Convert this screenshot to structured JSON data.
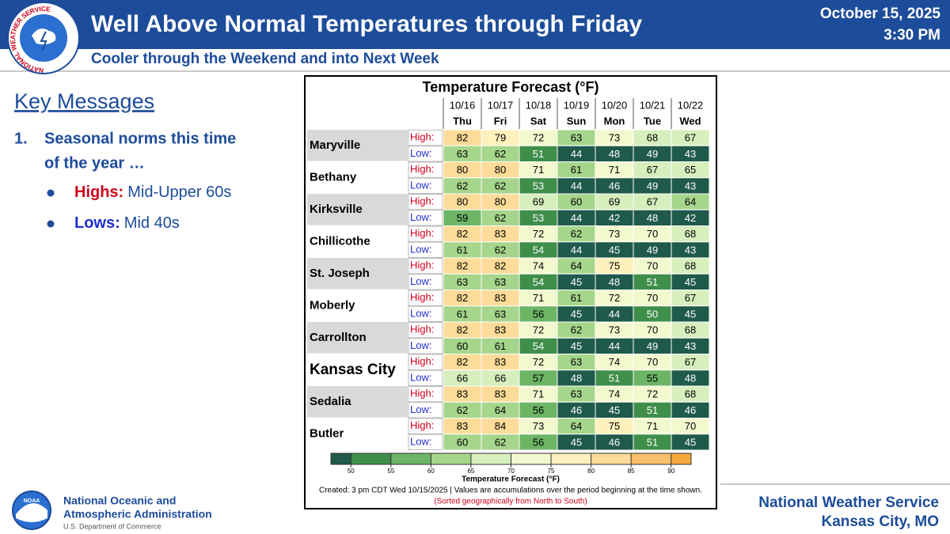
{
  "header": {
    "title": "Well Above Normal Temperatures through Friday",
    "date": "October 15, 2025",
    "time": "3:30 PM",
    "subtitle": "Cooler through the Weekend and into Next Week",
    "logo_text": "NATIONAL WEATHER SERVICE"
  },
  "key_messages": {
    "heading": "Key Messages",
    "item_number": "1.",
    "item_lines": [
      "Seasonal norms this time",
      "of the year …"
    ],
    "bullets": [
      {
        "label": "Highs:",
        "text": "Mid-Upper 60s",
        "color": "#d0021b"
      },
      {
        "label": "Lows:",
        "text": "Mid 40s",
        "color": "#1f2fd0"
      }
    ]
  },
  "table": {
    "title": "Temperature Forecast (°F)",
    "high_label": "High:",
    "low_label": "Low:",
    "days": [
      {
        "date": "10/16",
        "day": "Thu"
      },
      {
        "date": "10/17",
        "day": "Fri"
      },
      {
        "date": "10/18",
        "day": "Sat"
      },
      {
        "date": "10/19",
        "day": "Sun"
      },
      {
        "date": "10/20",
        "day": "Mon"
      },
      {
        "date": "10/21",
        "day": "Tue"
      },
      {
        "date": "10/22",
        "day": "Wed"
      }
    ],
    "rows": [
      {
        "city": "Maryville",
        "highs": [
          82,
          79,
          72,
          63,
          73,
          68,
          67
        ],
        "lows": [
          63,
          62,
          51,
          44,
          48,
          49,
          43
        ]
      },
      {
        "city": "Bethany",
        "highs": [
          80,
          80,
          71,
          61,
          71,
          67,
          65
        ],
        "lows": [
          62,
          62,
          53,
          44,
          46,
          49,
          43
        ]
      },
      {
        "city": "Kirksville",
        "highs": [
          80,
          80,
          69,
          60,
          69,
          67,
          64
        ],
        "lows": [
          59,
          62,
          53,
          44,
          42,
          48,
          42
        ]
      },
      {
        "city": "Chillicothe",
        "highs": [
          82,
          83,
          72,
          62,
          73,
          70,
          68
        ],
        "lows": [
          61,
          62,
          54,
          44,
          45,
          49,
          43
        ]
      },
      {
        "city": "St. Joseph",
        "highs": [
          82,
          82,
          74,
          64,
          75,
          70,
          68
        ],
        "lows": [
          63,
          63,
          54,
          45,
          48,
          51,
          45
        ]
      },
      {
        "city": "Moberly",
        "highs": [
          82,
          83,
          71,
          61,
          72,
          70,
          67
        ],
        "lows": [
          61,
          63,
          56,
          45,
          44,
          50,
          45
        ]
      },
      {
        "city": "Carrollton",
        "highs": [
          82,
          83,
          72,
          62,
          73,
          70,
          68
        ],
        "lows": [
          60,
          61,
          54,
          45,
          44,
          49,
          43
        ]
      },
      {
        "city": "Kansas City",
        "highlight": true,
        "highs": [
          82,
          83,
          72,
          63,
          74,
          70,
          67
        ],
        "lows": [
          66,
          66,
          57,
          48,
          51,
          55,
          48
        ]
      },
      {
        "city": "Sedalia",
        "highs": [
          83,
          83,
          71,
          63,
          74,
          72,
          68
        ],
        "lows": [
          62,
          64,
          56,
          46,
          45,
          51,
          46
        ]
      },
      {
        "city": "Butler",
        "highs": [
          83,
          84,
          73,
          64,
          75,
          71,
          70
        ],
        "lows": [
          60,
          62,
          56,
          45,
          46,
          51,
          45
        ]
      }
    ]
  },
  "colorbar": {
    "title": "Temperature Forecast (°F)",
    "ticks": [
      50,
      55,
      60,
      65,
      70,
      75,
      80,
      85,
      90
    ],
    "colors": [
      "#1f5a4a",
      "#3f8f4a",
      "#6cb565",
      "#a6d68c",
      "#d6efbd",
      "#f3f9cf",
      "#fff1bd",
      "#fddb98",
      "#f9bf6a",
      "#f6a93b"
    ],
    "text_colors": [
      "#fff",
      "#fff",
      "#000",
      "#000",
      "#000",
      "#000",
      "#000",
      "#000",
      "#000",
      "#000"
    ]
  },
  "footnote": {
    "created": "Created: 3 pm CDT Wed 10/15/2025  |  Values are accumulations over the period beginning at the time shown.",
    "sorted": "(Sorted geographically from North to South)"
  },
  "footer": {
    "noaa_logo": "NOAA",
    "noaa_lines": [
      "National Oceanic and",
      "Atmospheric Administration"
    ],
    "department": "U.S. Department of Commerce",
    "office_lines": [
      "National Weather Service",
      "Kansas City, MO"
    ]
  }
}
